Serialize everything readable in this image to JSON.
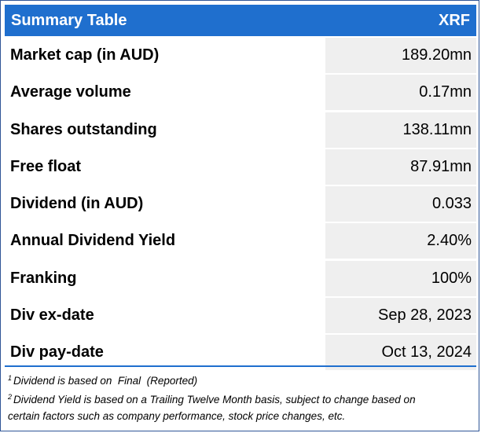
{
  "header": {
    "title": "Summary Table",
    "ticker": "XRF"
  },
  "rows": [
    {
      "label": "Market cap (in AUD)",
      "value": "189.20mn"
    },
    {
      "label": "Average volume",
      "value": "0.17mn"
    },
    {
      "label": "Shares outstanding",
      "value": "138.11mn"
    },
    {
      "label": "Free float",
      "value": "87.91mn"
    },
    {
      "label": "Dividend (in AUD)",
      "value": "0.033"
    },
    {
      "label": "Annual Dividend Yield",
      "value": "2.40%"
    },
    {
      "label": "Franking",
      "value": "100%"
    },
    {
      "label": "Div ex-date",
      "value": "Sep 28, 2023"
    },
    {
      "label": "Div pay-date",
      "value": "Oct 13, 2024"
    }
  ],
  "footnotes": [
    {
      "marker": "1",
      "text": "Dividend is based on  Final  (Reported)"
    },
    {
      "marker": "2",
      "text": "Dividend Yield is based on a Trailing Twelve Month basis, subject to change based on",
      "continuation": "certain factors such as company performance, stock price changes, etc."
    }
  ],
  "colors": {
    "header_bg": "#1f6fce",
    "value_bg": "#efefef",
    "border": "#2f5597"
  }
}
